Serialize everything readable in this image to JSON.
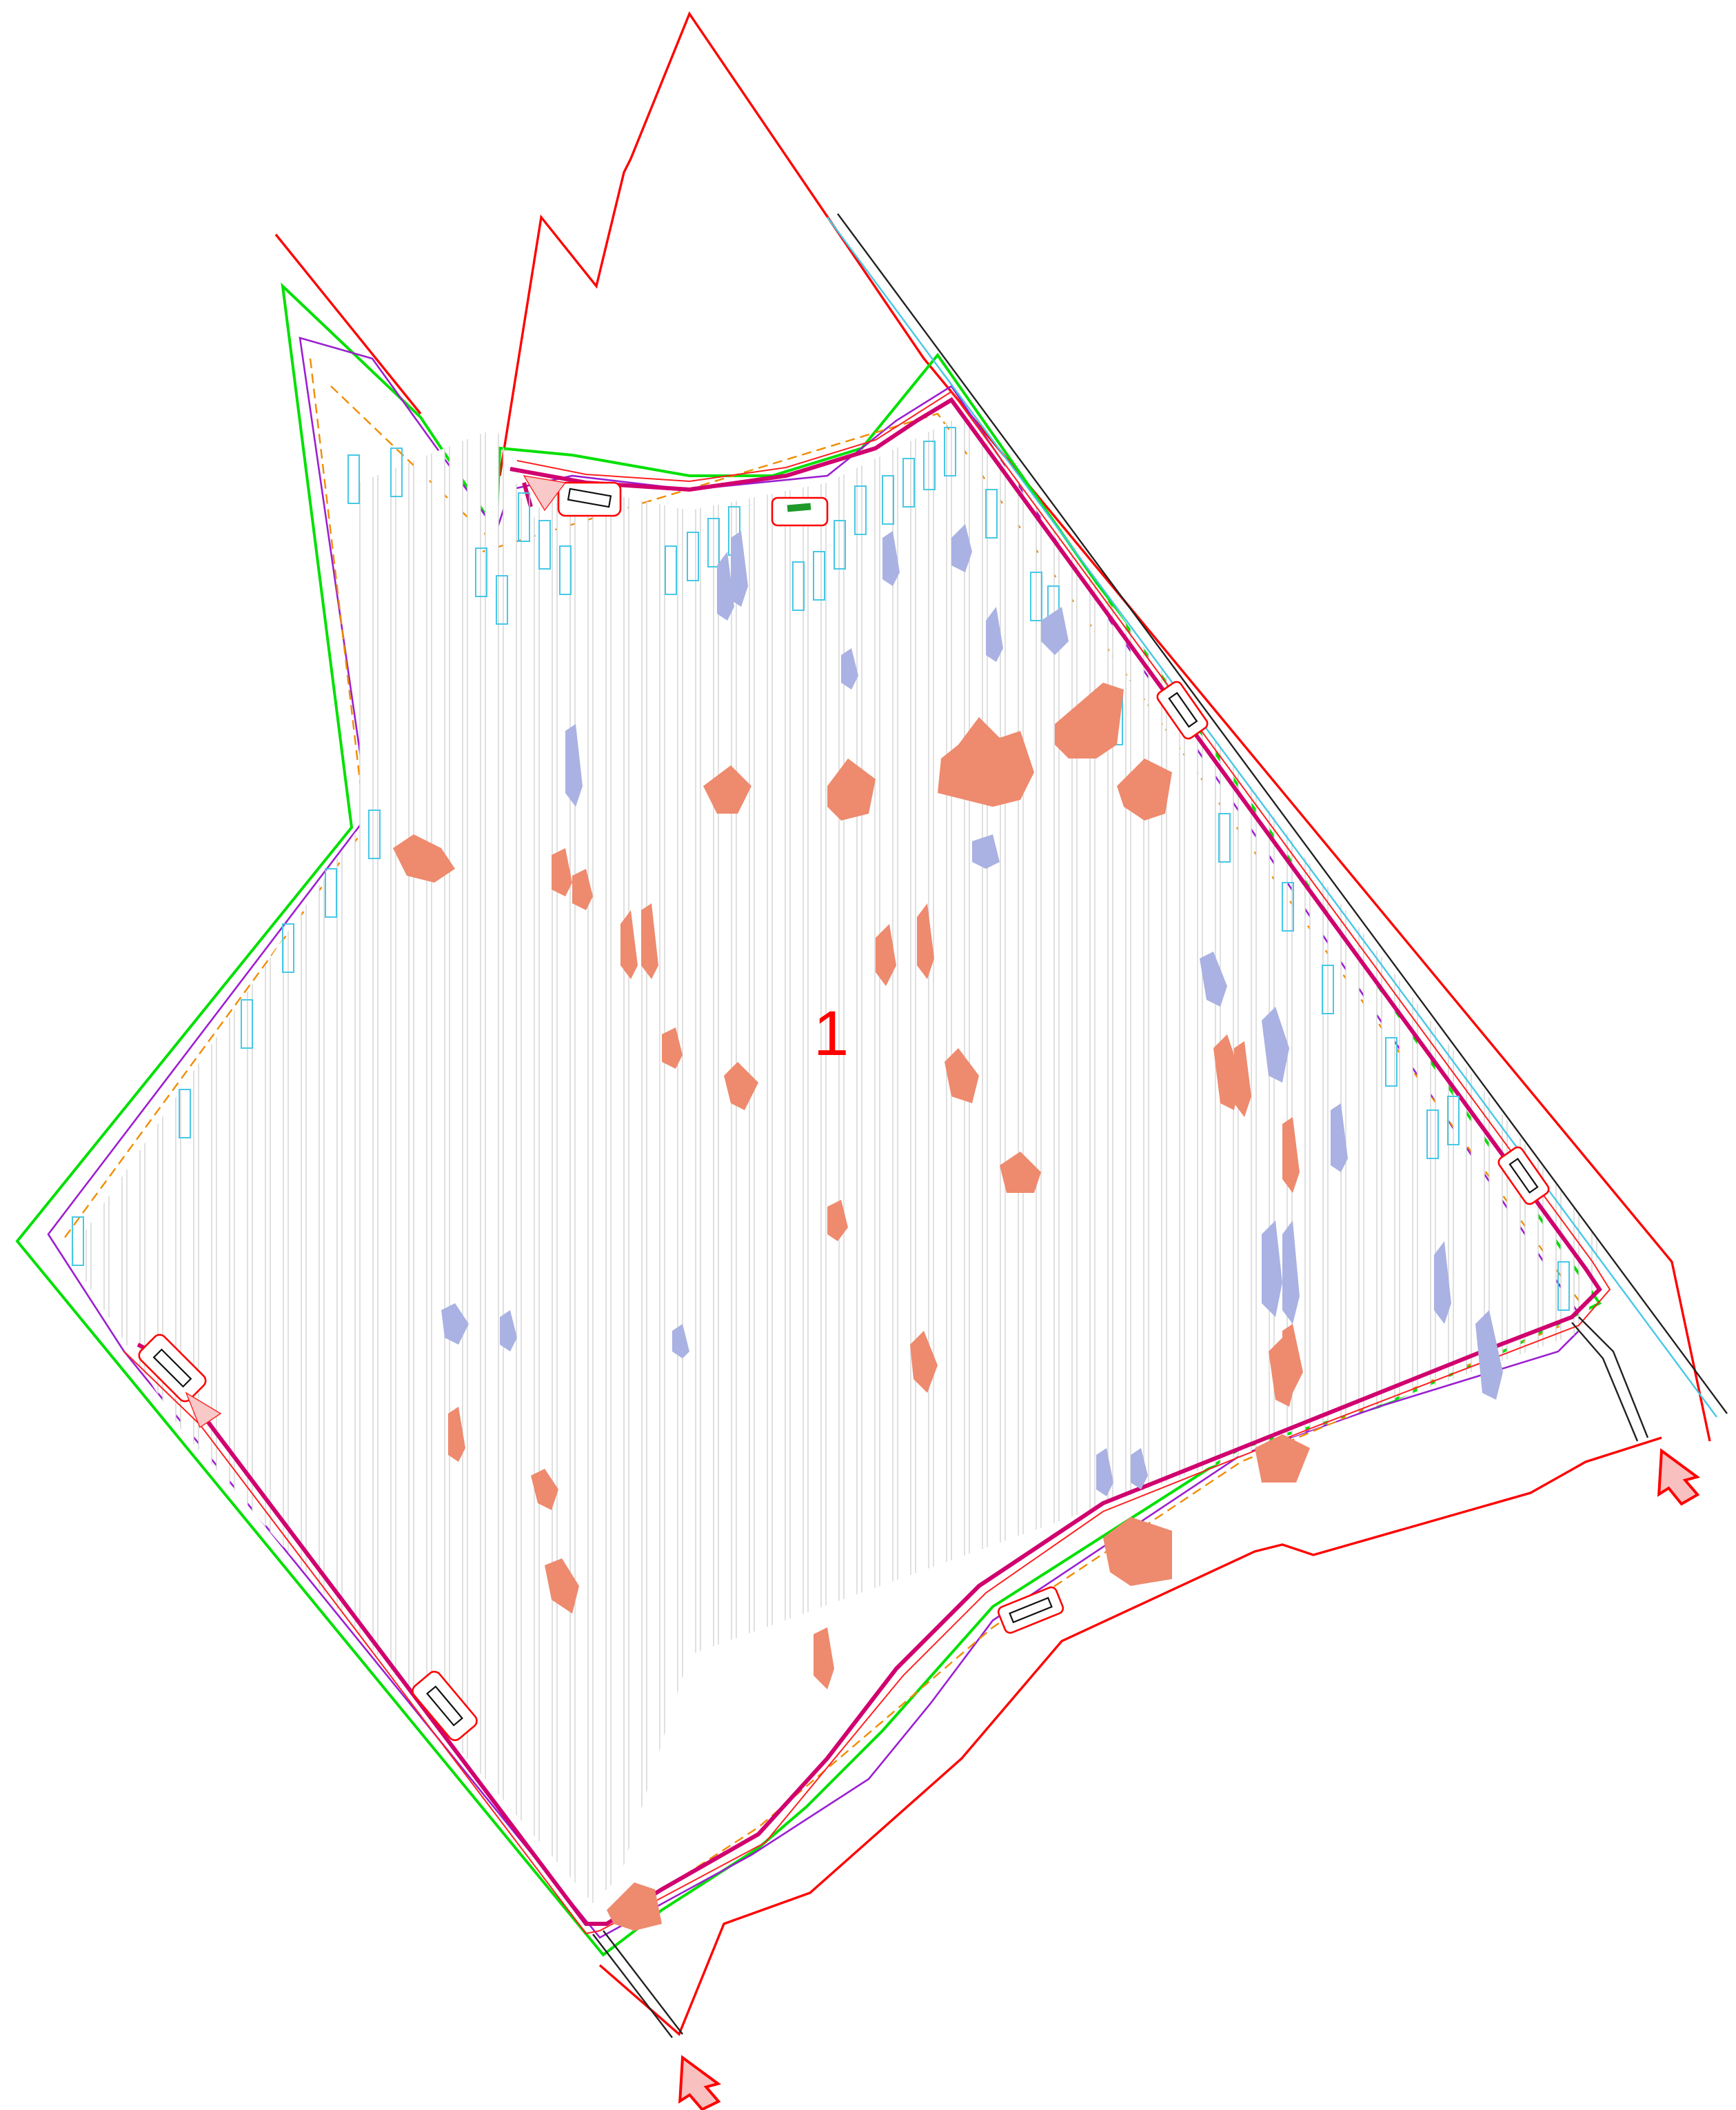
{
  "plan": {
    "field_label": "1",
    "entrances": [
      "entrance-south",
      "entrance-east"
    ],
    "legend_colors": {
      "property_boundary": "#ff0000",
      "fence": "#00e000",
      "setback": "#9b1fd1",
      "road": "#d0006f",
      "buildable": "#f08c00",
      "equipment": "#46c8e6",
      "shade_orange": "#ee8a6e",
      "shade_blue": "#a9b2e2",
      "entrance_fill": "#f9c0c0"
    }
  }
}
